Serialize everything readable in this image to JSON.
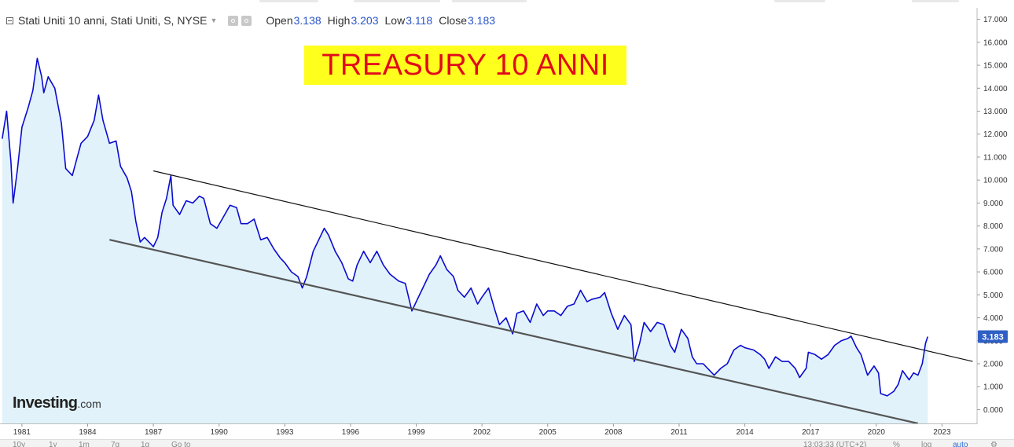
{
  "legend": {
    "instrument": "Stati Uniti 10 anni, Stati Uniti, S, NYSE",
    "ohlc": [
      {
        "label": "Open",
        "value": "3.138"
      },
      {
        "label": "High",
        "value": "3.203"
      },
      {
        "label": "Low",
        "value": "3.118"
      },
      {
        "label": "Close",
        "value": "3.183"
      }
    ]
  },
  "annotation": "TREASURY 10 ANNI",
  "logo": {
    "name": "Investing",
    "suffix": ".com"
  },
  "price_tag": "3.183",
  "colors": {
    "series_line": "#0b0bd0",
    "area_fill": "#e1f2fa",
    "title_bg": "#ffff1e",
    "title_text": "#e10b1a",
    "price_tag_bg": "#2f5fc4",
    "upper_trendline": "#111111",
    "lower_trendline": "#555555"
  },
  "toolbar": {
    "periods": [
      "10y",
      "1y",
      "1m",
      "7g",
      "1g"
    ],
    "goto_label": "Go to",
    "time": "13:03:33 (UTC+2)",
    "percent": "%",
    "log": "log",
    "auto": "auto",
    "settings_icon": "gear-icon"
  },
  "chart_data": {
    "type": "area",
    "title": "",
    "subtitle": "",
    "xlabel": "",
    "ylabel": "",
    "x_ticks": [
      "1981",
      "1984",
      "1987",
      "1990",
      "1993",
      "1996",
      "1999",
      "2002",
      "2005",
      "2008",
      "2011",
      "2014",
      "2017",
      "2020",
      "2023"
    ],
    "y_ticks": [
      "0.000",
      "1.000",
      "2.000",
      "3.000",
      "4.000",
      "5.000",
      "6.000",
      "7.000",
      "8.000",
      "9.000",
      "10.000",
      "11.000",
      "12.000",
      "13.000",
      "14.000",
      "15.000",
      "16.000",
      "17.000"
    ],
    "xlim": [
      1980.0,
      2024.6
    ],
    "ylim": [
      -0.6,
      17.5
    ],
    "grid": false,
    "series": [
      {
        "points": [
          [
            1980.1,
            11.8
          ],
          [
            1980.3,
            13.0
          ],
          [
            1980.5,
            10.8
          ],
          [
            1980.6,
            9.0
          ],
          [
            1980.8,
            10.5
          ],
          [
            1981.0,
            12.3
          ],
          [
            1981.3,
            13.2
          ],
          [
            1981.5,
            13.9
          ],
          [
            1981.7,
            15.3
          ],
          [
            1981.9,
            14.5
          ],
          [
            1982.0,
            13.8
          ],
          [
            1982.2,
            14.5
          ],
          [
            1982.5,
            14.0
          ],
          [
            1982.8,
            12.5
          ],
          [
            1983.0,
            10.5
          ],
          [
            1983.3,
            10.2
          ],
          [
            1983.5,
            10.9
          ],
          [
            1983.7,
            11.6
          ],
          [
            1984.0,
            11.9
          ],
          [
            1984.3,
            12.6
          ],
          [
            1984.5,
            13.7
          ],
          [
            1984.7,
            12.6
          ],
          [
            1985.0,
            11.6
          ],
          [
            1985.3,
            11.7
          ],
          [
            1985.5,
            10.6
          ],
          [
            1985.8,
            10.1
          ],
          [
            1986.0,
            9.5
          ],
          [
            1986.2,
            8.2
          ],
          [
            1986.4,
            7.3
          ],
          [
            1986.6,
            7.5
          ],
          [
            1986.8,
            7.3
          ],
          [
            1987.0,
            7.1
          ],
          [
            1987.2,
            7.5
          ],
          [
            1987.4,
            8.6
          ],
          [
            1987.6,
            9.2
          ],
          [
            1987.8,
            10.2
          ],
          [
            1987.9,
            8.9
          ],
          [
            1988.2,
            8.5
          ],
          [
            1988.5,
            9.1
          ],
          [
            1988.8,
            9.0
          ],
          [
            1989.1,
            9.3
          ],
          [
            1989.3,
            9.2
          ],
          [
            1989.6,
            8.1
          ],
          [
            1989.9,
            7.9
          ],
          [
            1990.2,
            8.4
          ],
          [
            1990.5,
            8.9
          ],
          [
            1990.8,
            8.8
          ],
          [
            1991.0,
            8.1
          ],
          [
            1991.3,
            8.1
          ],
          [
            1991.6,
            8.3
          ],
          [
            1991.9,
            7.4
          ],
          [
            1992.2,
            7.5
          ],
          [
            1992.5,
            7.0
          ],
          [
            1992.8,
            6.6
          ],
          [
            1993.0,
            6.4
          ],
          [
            1993.3,
            6.0
          ],
          [
            1993.6,
            5.8
          ],
          [
            1993.8,
            5.3
          ],
          [
            1994.0,
            5.8
          ],
          [
            1994.3,
            6.9
          ],
          [
            1994.6,
            7.5
          ],
          [
            1994.8,
            7.9
          ],
          [
            1995.0,
            7.6
          ],
          [
            1995.3,
            6.9
          ],
          [
            1995.6,
            6.4
          ],
          [
            1995.9,
            5.7
          ],
          [
            1996.1,
            5.6
          ],
          [
            1996.3,
            6.3
          ],
          [
            1996.6,
            6.9
          ],
          [
            1996.9,
            6.4
          ],
          [
            1997.2,
            6.9
          ],
          [
            1997.5,
            6.3
          ],
          [
            1997.8,
            5.9
          ],
          [
            1998.2,
            5.6
          ],
          [
            1998.5,
            5.5
          ],
          [
            1998.8,
            4.3
          ],
          [
            1999.0,
            4.7
          ],
          [
            1999.3,
            5.3
          ],
          [
            1999.6,
            5.9
          ],
          [
            1999.9,
            6.3
          ],
          [
            2000.1,
            6.7
          ],
          [
            2000.4,
            6.1
          ],
          [
            2000.7,
            5.8
          ],
          [
            2000.9,
            5.2
          ],
          [
            2001.2,
            4.9
          ],
          [
            2001.5,
            5.3
          ],
          [
            2001.8,
            4.6
          ],
          [
            2002.0,
            4.9
          ],
          [
            2002.3,
            5.3
          ],
          [
            2002.6,
            4.3
          ],
          [
            2002.8,
            3.7
          ],
          [
            2003.1,
            4.0
          ],
          [
            2003.4,
            3.3
          ],
          [
            2003.6,
            4.2
          ],
          [
            2003.9,
            4.3
          ],
          [
            2004.2,
            3.8
          ],
          [
            2004.5,
            4.6
          ],
          [
            2004.8,
            4.1
          ],
          [
            2005.0,
            4.3
          ],
          [
            2005.3,
            4.3
          ],
          [
            2005.6,
            4.1
          ],
          [
            2005.9,
            4.5
          ],
          [
            2006.2,
            4.6
          ],
          [
            2006.5,
            5.2
          ],
          [
            2006.8,
            4.7
          ],
          [
            2007.0,
            4.8
          ],
          [
            2007.4,
            4.9
          ],
          [
            2007.6,
            5.1
          ],
          [
            2007.9,
            4.2
          ],
          [
            2008.2,
            3.5
          ],
          [
            2008.5,
            4.1
          ],
          [
            2008.8,
            3.7
          ],
          [
            2008.95,
            2.1
          ],
          [
            2009.2,
            2.9
          ],
          [
            2009.4,
            3.8
          ],
          [
            2009.7,
            3.4
          ],
          [
            2010.0,
            3.8
          ],
          [
            2010.3,
            3.7
          ],
          [
            2010.6,
            2.8
          ],
          [
            2010.8,
            2.5
          ],
          [
            2011.1,
            3.5
          ],
          [
            2011.4,
            3.1
          ],
          [
            2011.6,
            2.3
          ],
          [
            2011.8,
            2.0
          ],
          [
            2012.1,
            2.0
          ],
          [
            2012.4,
            1.7
          ],
          [
            2012.6,
            1.5
          ],
          [
            2012.9,
            1.8
          ],
          [
            2013.2,
            2.0
          ],
          [
            2013.5,
            2.6
          ],
          [
            2013.8,
            2.8
          ],
          [
            2014.0,
            2.7
          ],
          [
            2014.4,
            2.6
          ],
          [
            2014.7,
            2.4
          ],
          [
            2014.9,
            2.2
          ],
          [
            2015.1,
            1.8
          ],
          [
            2015.4,
            2.3
          ],
          [
            2015.7,
            2.1
          ],
          [
            2016.0,
            2.1
          ],
          [
            2016.3,
            1.8
          ],
          [
            2016.5,
            1.4
          ],
          [
            2016.8,
            1.8
          ],
          [
            2016.9,
            2.5
          ],
          [
            2017.2,
            2.4
          ],
          [
            2017.5,
            2.2
          ],
          [
            2017.8,
            2.4
          ],
          [
            2018.1,
            2.8
          ],
          [
            2018.4,
            3.0
          ],
          [
            2018.7,
            3.1
          ],
          [
            2018.85,
            3.2
          ],
          [
            2019.1,
            2.7
          ],
          [
            2019.3,
            2.4
          ],
          [
            2019.6,
            1.5
          ],
          [
            2019.9,
            1.9
          ],
          [
            2020.1,
            1.6
          ],
          [
            2020.2,
            0.7
          ],
          [
            2020.5,
            0.6
          ],
          [
            2020.8,
            0.8
          ],
          [
            2021.0,
            1.1
          ],
          [
            2021.2,
            1.7
          ],
          [
            2021.5,
            1.3
          ],
          [
            2021.7,
            1.6
          ],
          [
            2021.9,
            1.5
          ],
          [
            2022.1,
            2.0
          ],
          [
            2022.25,
            2.9
          ],
          [
            2022.35,
            3.18
          ]
        ]
      }
    ],
    "trendlines": [
      {
        "from": [
          1987.0,
          10.4
        ],
        "to": [
          2024.4,
          2.1
        ]
      },
      {
        "from": [
          1985.0,
          7.4
        ],
        "to": [
          2021.9,
          -0.6
        ]
      }
    ]
  }
}
